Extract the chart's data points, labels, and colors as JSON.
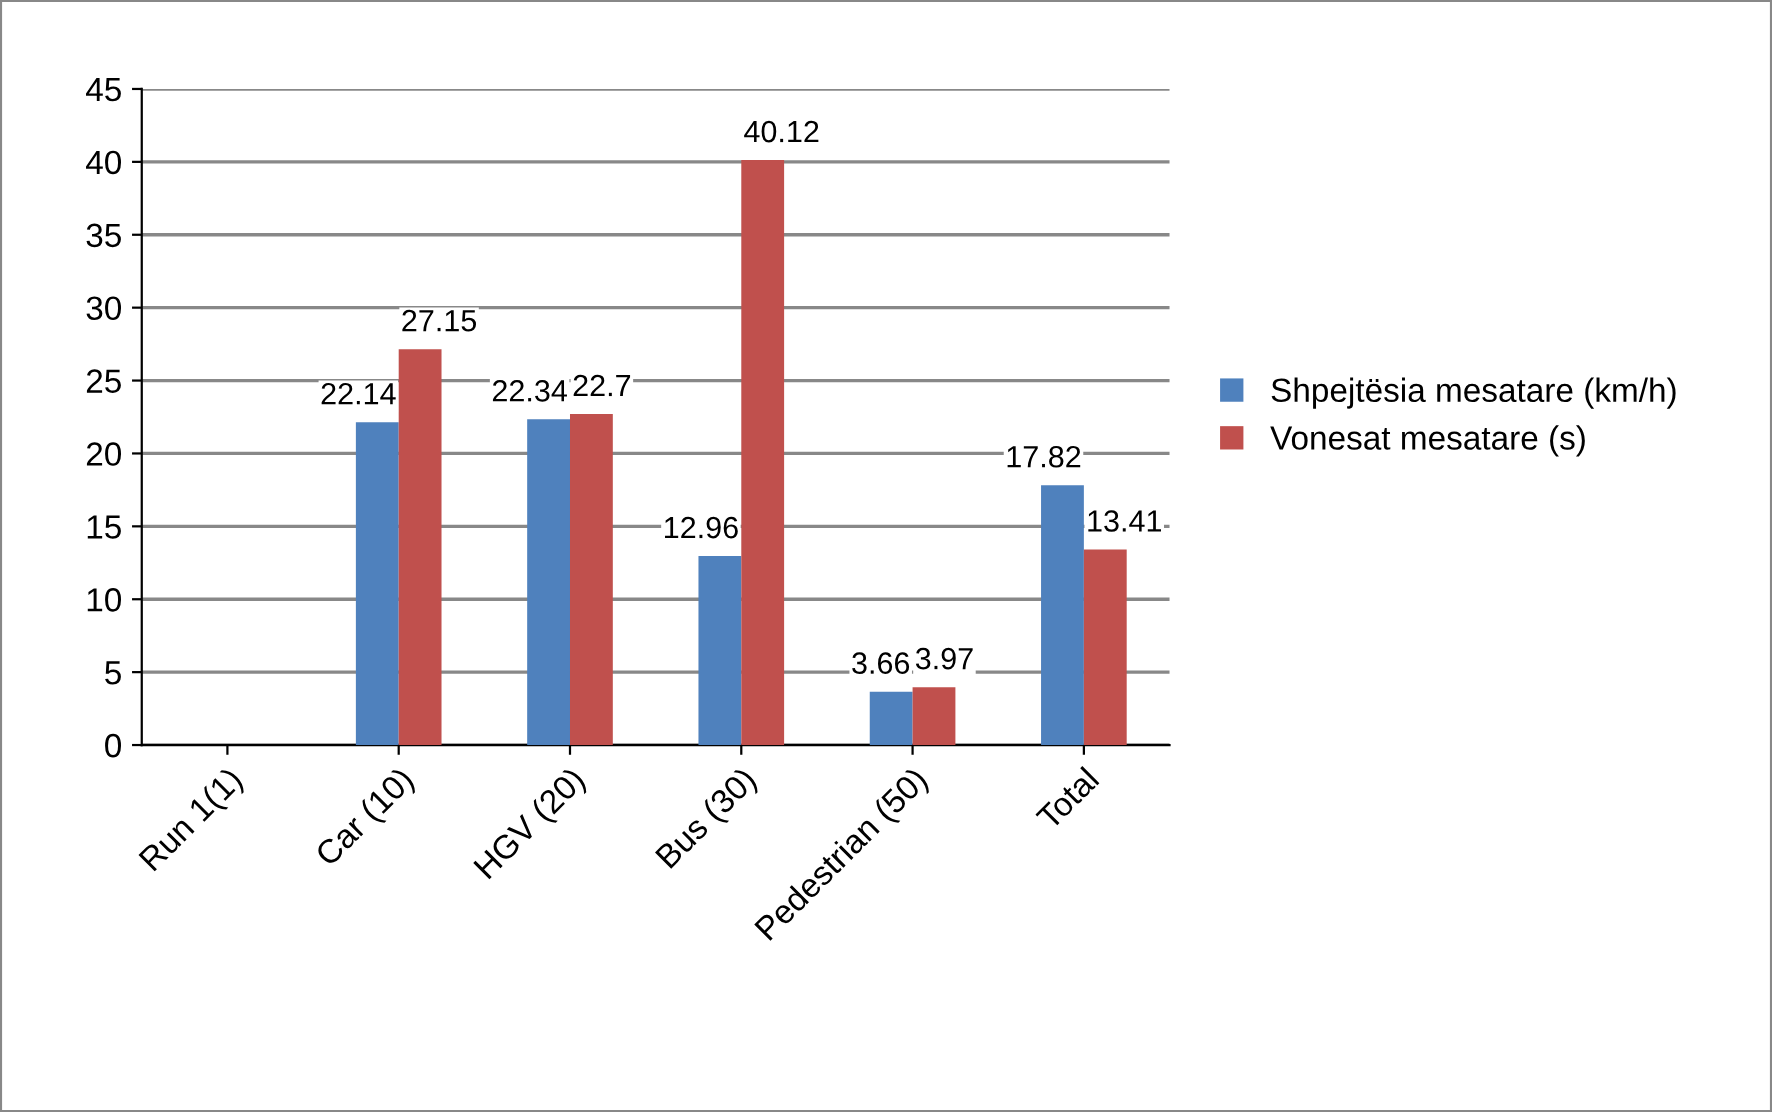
{
  "chart_data": {
    "type": "bar",
    "categories": [
      "Run 1(1)",
      "Car (10)",
      "HGV (20)",
      "Bus (30)",
      "Pedestrian (50)",
      "Total"
    ],
    "series": [
      {
        "name": "Shpejtësia mesatare (km/h)",
        "color": "#4f81bd",
        "values": [
          null,
          22.14,
          22.34,
          12.96,
          3.66,
          17.82
        ]
      },
      {
        "name": "Vonesat mesatare (s)",
        "color": "#c0504d",
        "values": [
          null,
          27.15,
          22.7,
          40.12,
          3.97,
          13.41
        ]
      }
    ],
    "ylim": [
      0,
      45
    ],
    "yticks": [
      0,
      5,
      10,
      15,
      20,
      25,
      30,
      35,
      40,
      45
    ],
    "grid": "y",
    "legend": "right",
    "data_labels": true
  }
}
